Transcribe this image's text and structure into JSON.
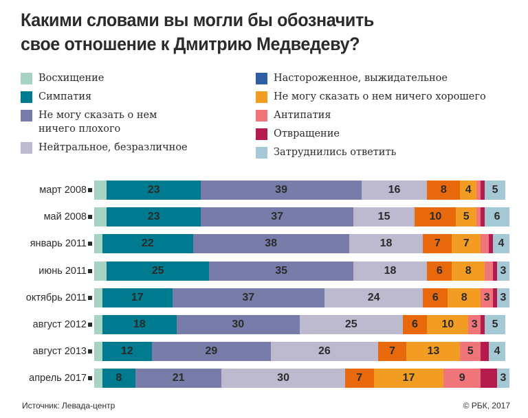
{
  "chart_data": {
    "type": "bar",
    "orientation": "horizontal",
    "stacked": true,
    "title": "Какими словами вы могли бы обозначить свое отношение к Дмитрию Медведеву?",
    "xlabel": "",
    "ylabel": "",
    "xlim": [
      0,
      100
    ],
    "grid": false,
    "legend_position": "top",
    "categories": [
      "март 2008",
      "май 2008",
      "январь 2011",
      "июнь 2011",
      "октябрь 2011",
      "август 2012",
      "август 2013",
      "апрель 2017"
    ],
    "series": [
      {
        "name": "Восхищение",
        "color": "#a6d3c2",
        "values": [
          3,
          3,
          2,
          3,
          2,
          2,
          2,
          2
        ],
        "labels": [
          "",
          "",
          "",
          "",
          "",
          "",
          "",
          ""
        ]
      },
      {
        "name": "Симпатия",
        "color": "#007a8f",
        "values": [
          23,
          23,
          22,
          25,
          17,
          18,
          12,
          8
        ],
        "labels": [
          "23",
          "23",
          "22",
          "25",
          "17",
          "18",
          "12",
          "8"
        ]
      },
      {
        "name": "Не могу сказать о нем ничего плохого",
        "color": "#787ca8",
        "values": [
          39,
          37,
          38,
          35,
          37,
          30,
          29,
          21
        ],
        "labels": [
          "39",
          "37",
          "38",
          "35",
          "37",
          "30",
          "29",
          "21"
        ]
      },
      {
        "name": "Нейтральное, безразличное",
        "color": "#bdbad0",
        "values": [
          16,
          15,
          18,
          18,
          24,
          25,
          26,
          30
        ],
        "labels": [
          "16",
          "15",
          "18",
          "18",
          "24",
          "25",
          "26",
          "30"
        ]
      },
      {
        "name": "Настороженное, выжидательное",
        "color": "#e8680c",
        "legend_color": "#2f5fa3",
        "values": [
          8,
          10,
          7,
          6,
          6,
          6,
          7,
          7
        ],
        "labels": [
          "8",
          "10",
          "7",
          "6",
          "6",
          "6",
          "7",
          "7"
        ]
      },
      {
        "name": "Не могу сказать о нем ничего хорошего",
        "color": "#f29c24",
        "values": [
          4,
          5,
          7,
          8,
          8,
          10,
          13,
          17
        ],
        "labels": [
          "4",
          "5",
          "7",
          "8",
          "8",
          "10",
          "13",
          "17"
        ]
      },
      {
        "name": "Антипатия",
        "color": "#ef757a",
        "values": [
          1,
          1,
          2,
          2,
          3,
          3,
          5,
          9
        ],
        "labels": [
          "",
          "",
          "",
          "",
          "3",
          "3",
          "5",
          "9"
        ]
      },
      {
        "name": "Отвращение",
        "color": "#b41c4e",
        "values": [
          1,
          1,
          1,
          1,
          1,
          1,
          2,
          4
        ],
        "labels": [
          "",
          "",
          "",
          "",
          "",
          "",
          "",
          ""
        ]
      },
      {
        "name": "Затруднились ответить",
        "color": "#a5c9d4",
        "values": [
          5,
          6,
          4,
          3,
          3,
          5,
          4,
          3
        ],
        "labels": [
          "5",
          "6",
          "4",
          "3",
          "3",
          "5",
          "4",
          "3"
        ]
      }
    ]
  },
  "legend": {
    "left": [
      {
        "label": "Восхищение",
        "color": "#a6d3c2"
      },
      {
        "label": "Симпатия",
        "color": "#007a8f"
      },
      {
        "label": "Не могу сказать о нем\nничего плохого",
        "color": "#787ca8"
      },
      {
        "label": "Нейтральное, безразличное",
        "color": "#bdbad0"
      }
    ],
    "right": [
      {
        "label": "Настороженное, выжидательное",
        "color": "#2f5fa3"
      },
      {
        "label": "Не могу сказать о нем ничего хорошего",
        "color": "#f29c24"
      },
      {
        "label": "Антипатия",
        "color": "#ef757a"
      },
      {
        "label": "Отвращение",
        "color": "#b41c4e"
      },
      {
        "label": "Затруднились ответить",
        "color": "#a5c9d4"
      }
    ]
  },
  "header": {
    "title_line1": "Какими словами вы могли бы обозначить",
    "title_line2": "свое отношение к Дмитрию Медведеву?"
  },
  "footer": {
    "source": "Источник: Левада-центр",
    "copyright": "© РБК, 2017"
  }
}
